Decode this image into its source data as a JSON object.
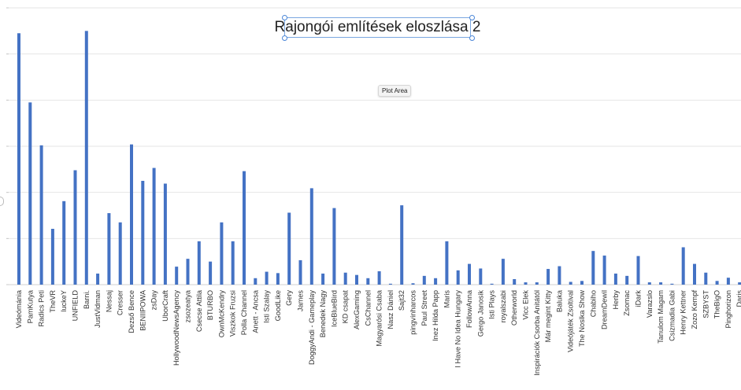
{
  "chart_data": {
    "type": "bar",
    "title": "Rajongói említések eloszlása 2",
    "xlabel": "",
    "ylabel": "",
    "ylim": [
      0,
      6
    ],
    "grid": true,
    "legend": "none",
    "bar_color": "#4472c4",
    "categories": [
      "Videómánia",
      "PamKutya",
      "Radics Peti",
      "TheVR",
      "luckeY",
      "UNFIELD",
      "Barni.",
      "JustVidman",
      "Nessaj",
      "Cresser",
      "Dezső Bence",
      "BENIIPOWA",
      "zsDay",
      "UborCraft",
      "HollywoodNewsAgency",
      "zsozeatya",
      "Csecse Attila",
      "BTURBO",
      "OwnMcKendry",
      "Viszkok Fruzsi",
      "Polla Channel",
      "Anett - Ancsa",
      "Isti Szalay",
      "GoodLike",
      "Gery",
      "James",
      "DoggyAndi - Gameplay",
      "Benedek Nagy",
      "IceBlueBird",
      "KD csapat",
      "AlexGaming",
      "CsChannel",
      "Magyarósi Csaba",
      "Nasz Dániel",
      "Sajt32",
      "pingvinharcos",
      "Paul Street",
      "Inez Hilda Papp",
      "Maris",
      "I Have No Idea Hungary",
      "FollowAnna",
      "Gergo Janosik",
      "Isti Plays",
      "royalszabi",
      "Otherworld",
      "Vicc Elek",
      "Inspirációk Csorba Anitától",
      "Már megint Kitty",
      "Baluka",
      "Videójáték Zsoltival",
      "The Noslka Show",
      "Chabiho",
      "DreamDewil",
      "Herby",
      "Zsomac",
      "iDark",
      "Varazslo",
      "Tanulom Magam",
      "Csizmadia Gabi",
      "Henry Kettner",
      "Zozo Kempf",
      "SZBYST",
      "TheBigO",
      "Pinghorizon",
      "Daris"
    ],
    "values": [
      5.45,
      3.95,
      3.02,
      1.21,
      1.81,
      2.48,
      5.5,
      0.24,
      1.55,
      1.35,
      3.04,
      2.25,
      2.53,
      2.19,
      0.39,
      0.56,
      0.94,
      0.5,
      1.35,
      0.94,
      2.46,
      0.14,
      0.28,
      0.25,
      1.56,
      0.53,
      2.09,
      0.24,
      1.66,
      0.26,
      0.21,
      0.14,
      0.29,
      0.02,
      1.72,
      0.03,
      0.19,
      0.14,
      0.94,
      0.31,
      0.45,
      0.35,
      0.02,
      0.56,
      0.12,
      0.05,
      0.05,
      0.34,
      0.4,
      0.06,
      0.08,
      0.73,
      0.63,
      0.24,
      0.19,
      0.62,
      0.05,
      0.05,
      0.02,
      0.81,
      0.45,
      0.26,
      0.08,
      0.15,
      0.05
    ]
  },
  "ui": {
    "plot_area_tooltip": "Plot Area"
  }
}
